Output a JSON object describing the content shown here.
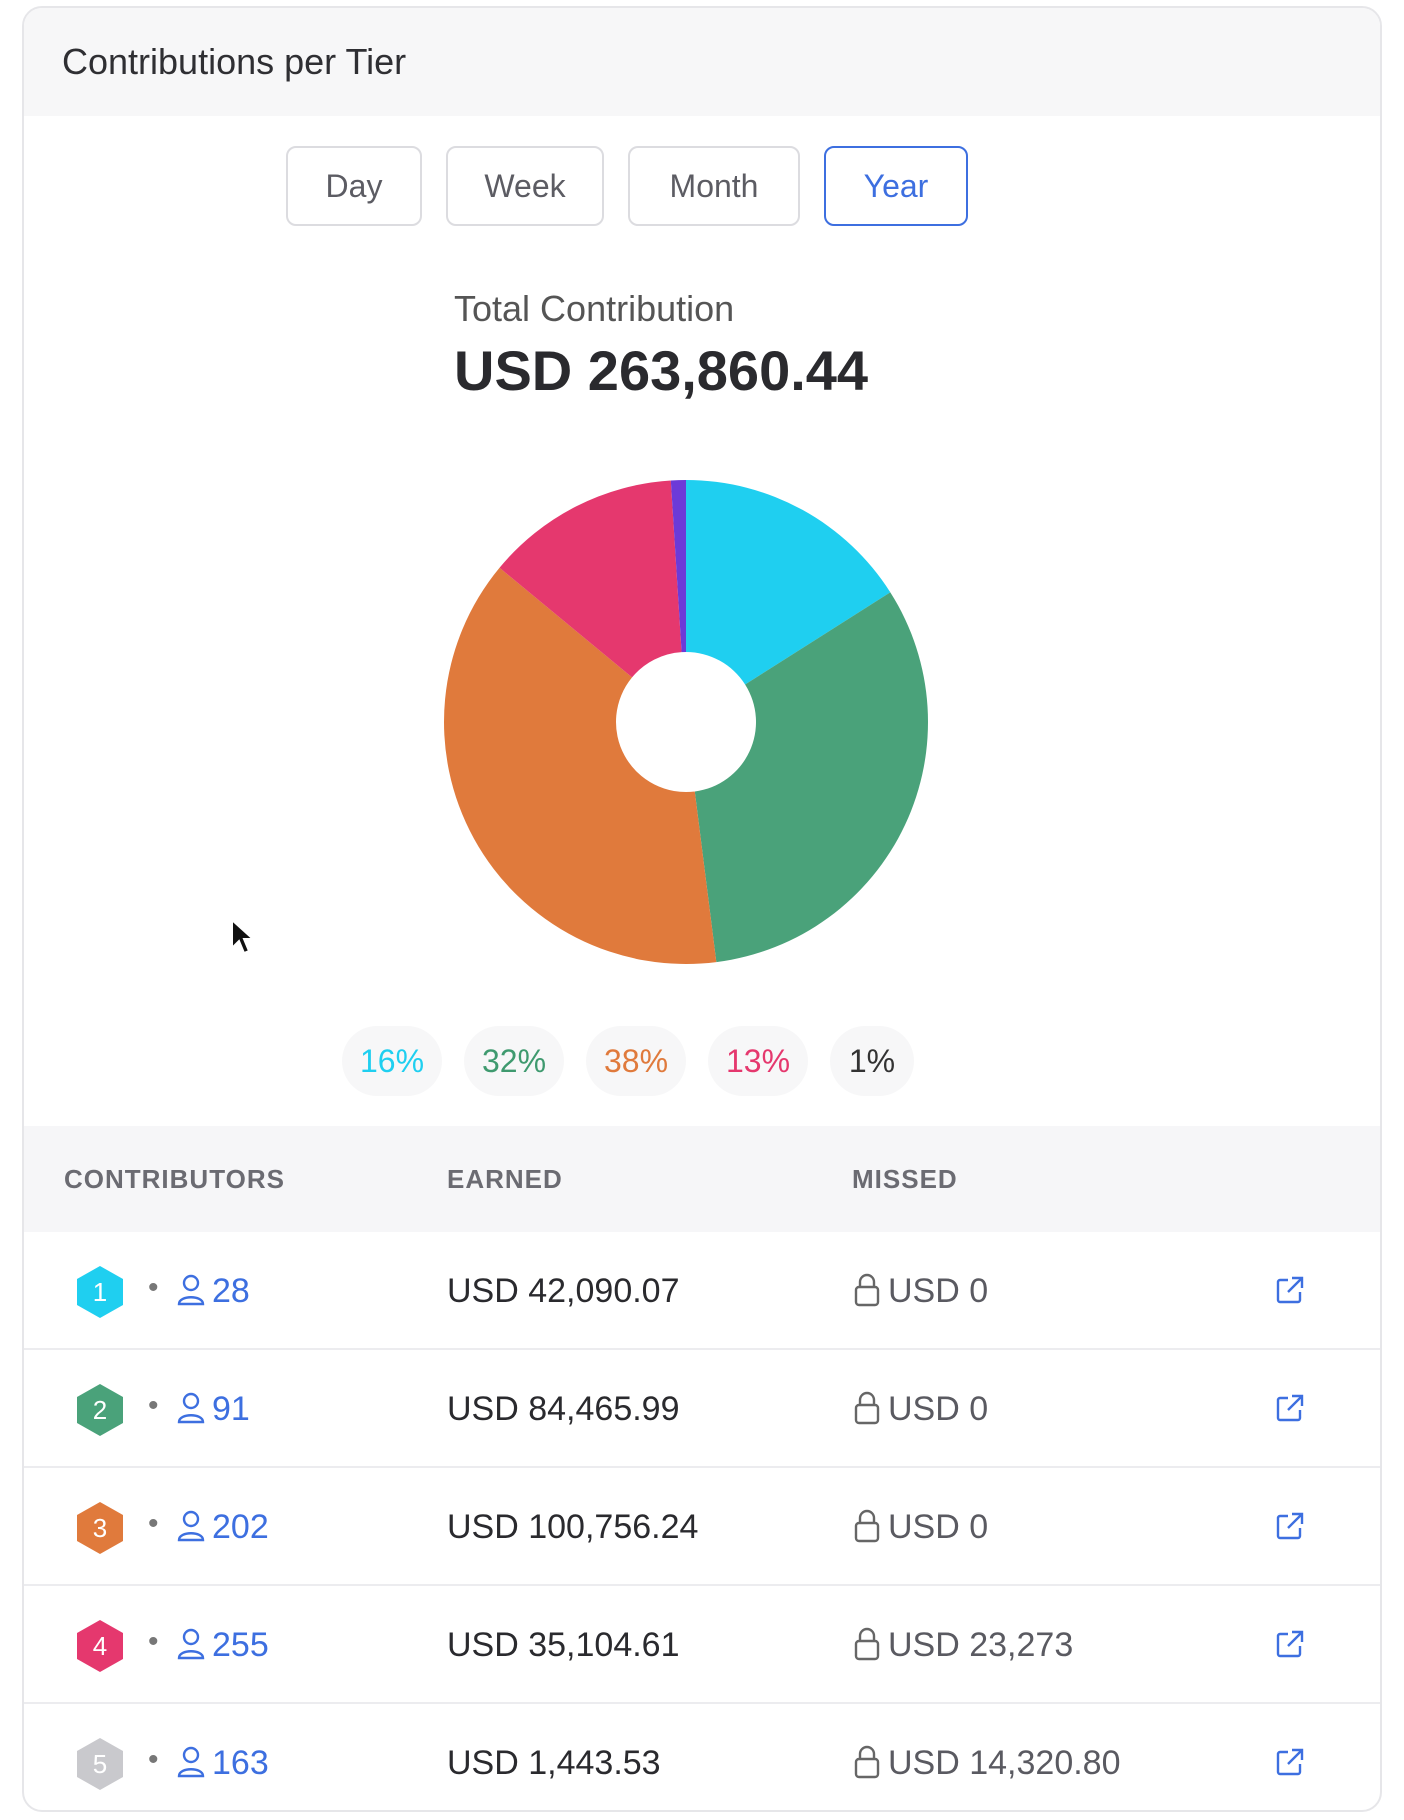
{
  "card": {
    "title": "Contributions per Tier"
  },
  "periods": [
    {
      "label": "Day",
      "active": false
    },
    {
      "label": "Week",
      "active": false
    },
    {
      "label": "Month",
      "active": false
    },
    {
      "label": "Year",
      "active": true
    }
  ],
  "summary": {
    "label": "Total Contribution",
    "value": "USD 263,860.44"
  },
  "chart_data": {
    "type": "pie",
    "categories": [
      "Tier 1",
      "Tier 2",
      "Tier 3",
      "Tier 4",
      "Tier 5"
    ],
    "values": [
      16,
      32,
      38,
      13,
      1
    ],
    "value_labels": [
      "16%",
      "32%",
      "38%",
      "13%",
      "1%"
    ],
    "colors": [
      "#1fcff0",
      "#4aa27a",
      "#e07a3c",
      "#e5386e",
      "#6c3ad8"
    ],
    "label_colors": [
      "#1fcff0",
      "#3f9a6f",
      "#e07a3c",
      "#e5386e",
      "#333333"
    ],
    "donut": true,
    "title": ""
  },
  "table": {
    "columns": [
      "CONTRIBUTORS",
      "EARNED",
      "MISSED"
    ],
    "rows": [
      {
        "tier": "1",
        "color": "#1fcff0",
        "contributors": "28",
        "earned": "USD 42,090.07",
        "missed": "USD 0"
      },
      {
        "tier": "2",
        "color": "#4aa27a",
        "contributors": "91",
        "earned": "USD 84,465.99",
        "missed": "USD 0"
      },
      {
        "tier": "3",
        "color": "#e07a3c",
        "contributors": "202",
        "earned": "USD 100,756.24",
        "missed": "USD 0"
      },
      {
        "tier": "4",
        "color": "#e5386e",
        "contributors": "255",
        "earned": "USD 35,104.61",
        "missed": "USD 23,273"
      },
      {
        "tier": "5",
        "color": "#c9c9cd",
        "contributors": "163",
        "earned": "USD 1,443.53",
        "missed": "USD 14,320.80"
      }
    ]
  },
  "icons": {
    "row_separator": "•",
    "person": "person-icon",
    "lock": "lock-icon",
    "external": "external-link-icon"
  }
}
